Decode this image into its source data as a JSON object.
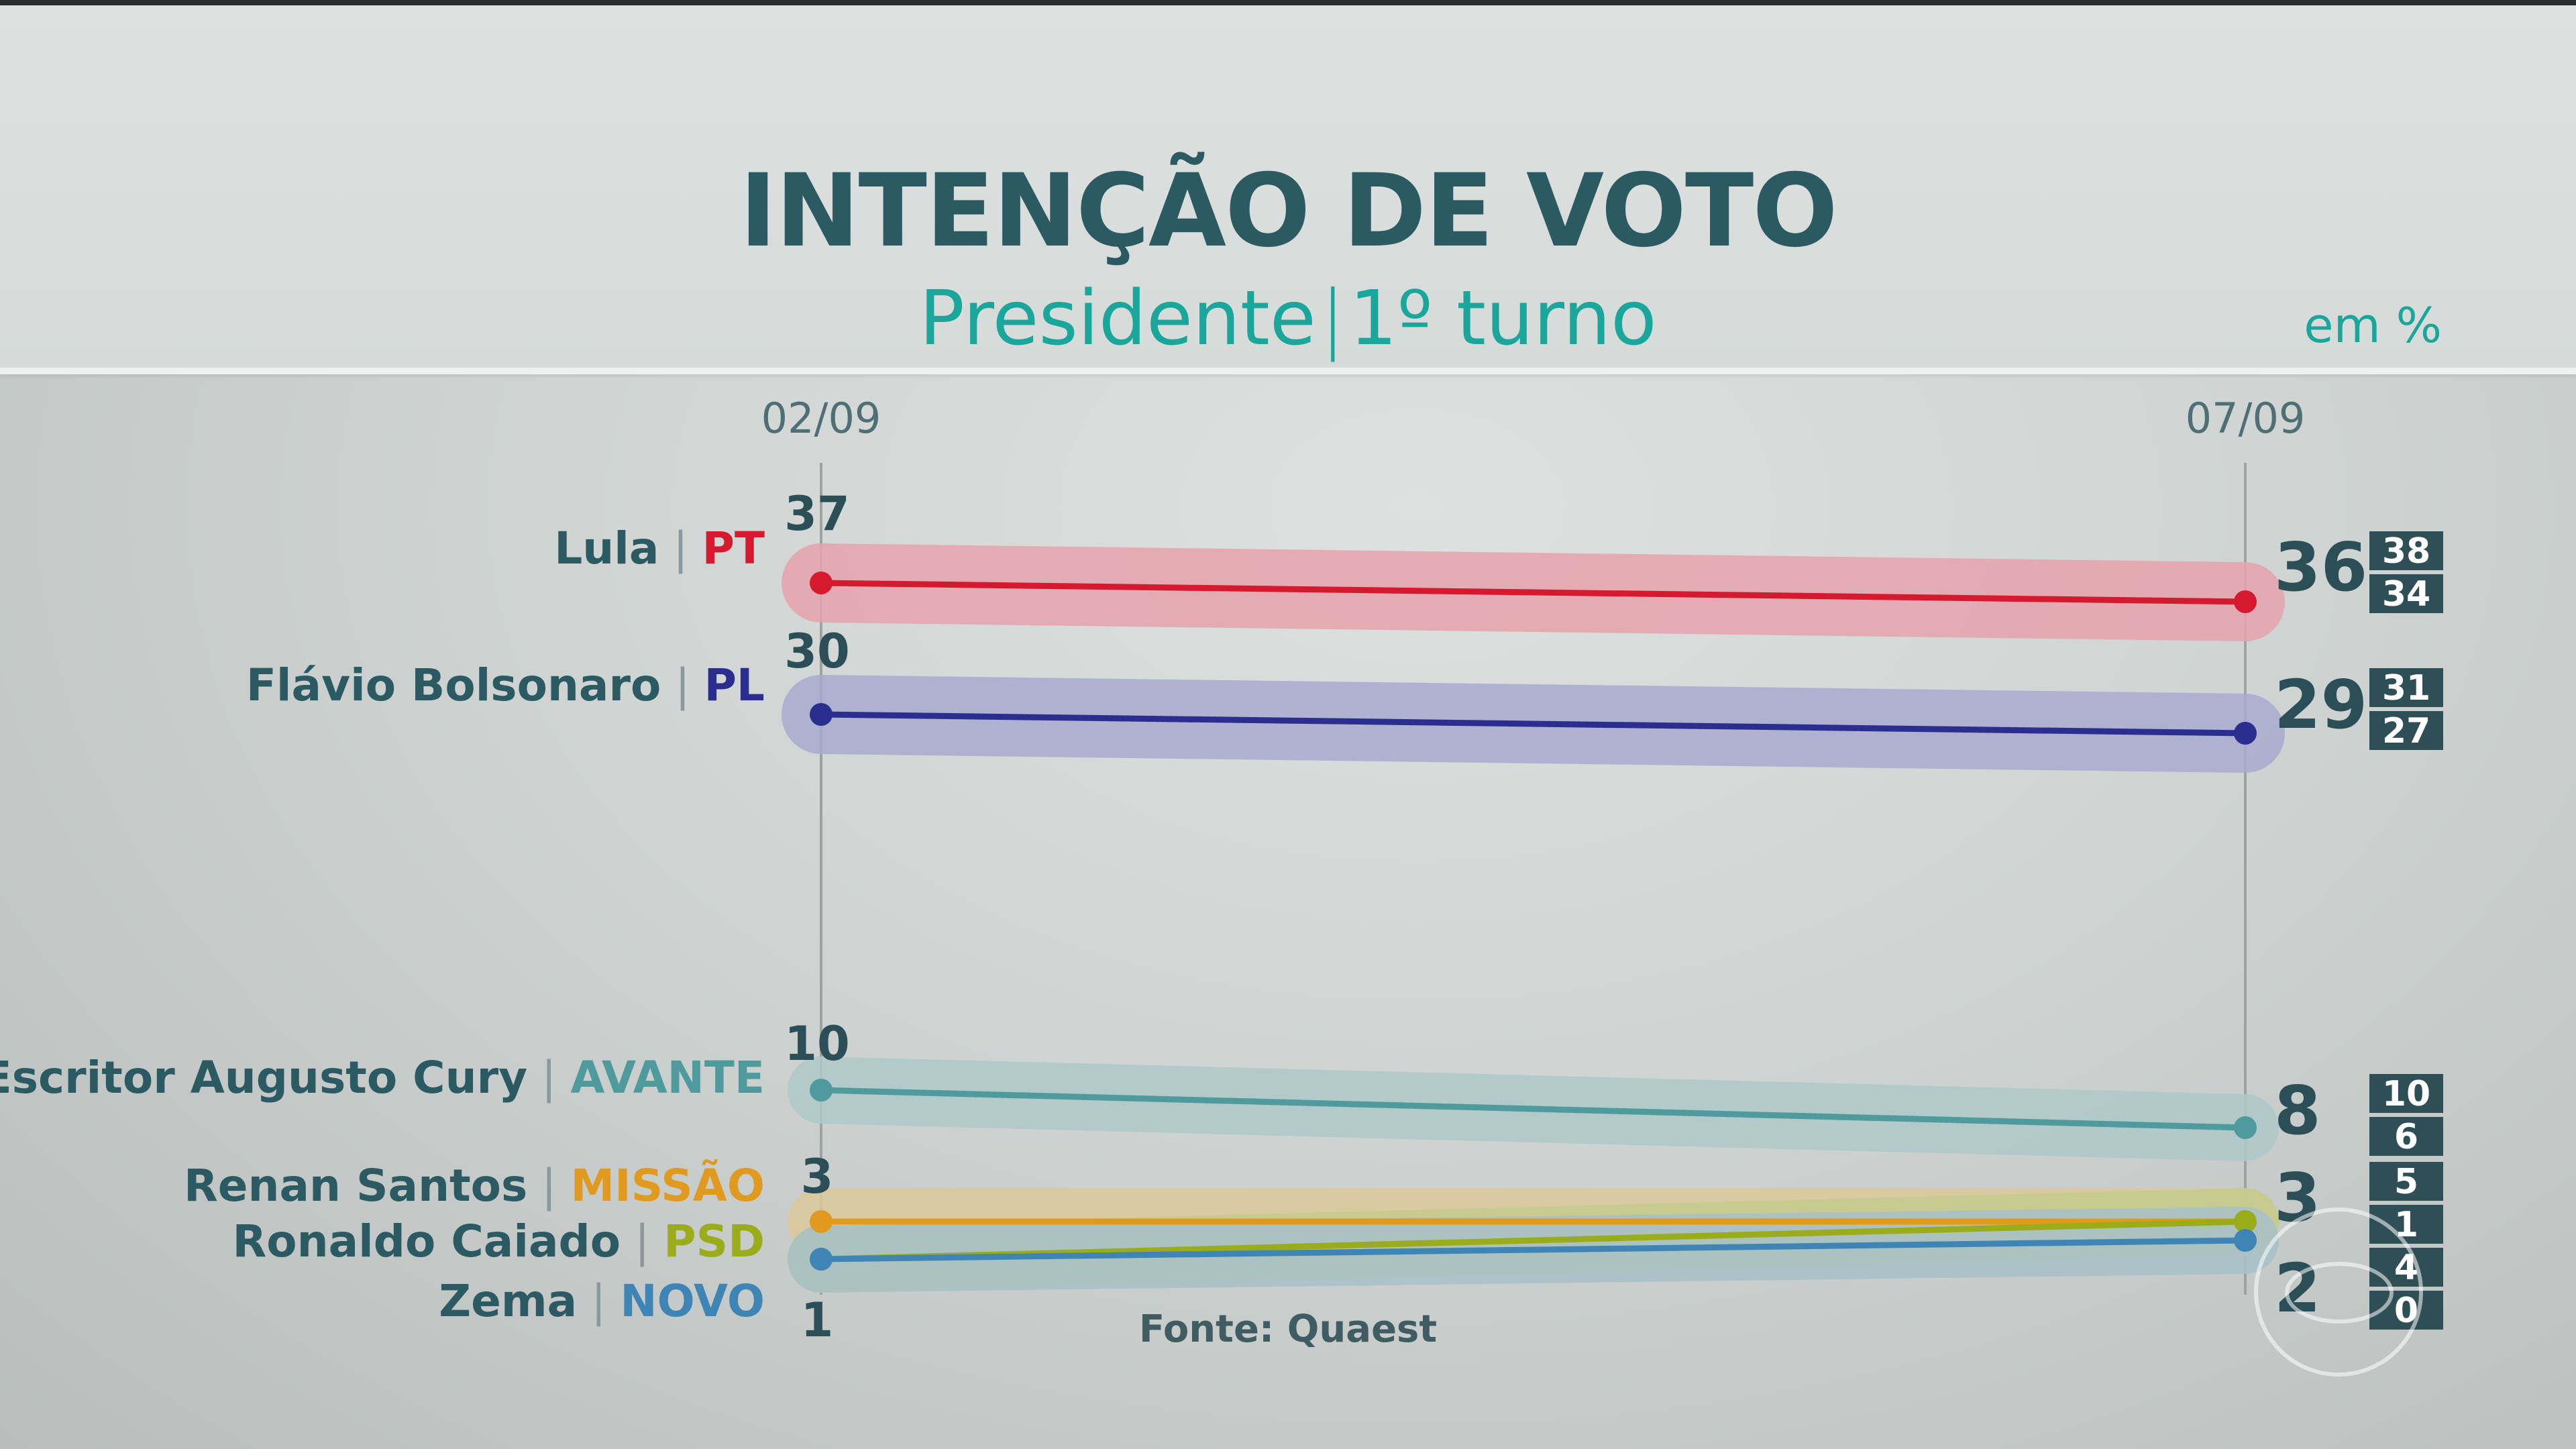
{
  "chart_data": {
    "type": "line",
    "title": "INTENÇÃO DE VOTO",
    "subtitle_left": "Presidente",
    "subtitle_separator": "|",
    "subtitle_right": "1º turno",
    "unit": "em %",
    "source": "Fonte: Quaest",
    "x": [
      "02/09",
      "07/09"
    ],
    "ylim": [
      0,
      40
    ],
    "series": [
      {
        "candidate": "Lula",
        "party": "PT",
        "values": [
          37,
          36
        ],
        "start_label": "37",
        "end_label": "36",
        "range": [
          "38",
          "34"
        ],
        "color": "#d5192e",
        "band": "#e6a3ad",
        "party_color": "#d5192e"
      },
      {
        "candidate": "Flávio Bolsonaro",
        "party": "PL",
        "values": [
          30,
          29
        ],
        "start_label": "30",
        "end_label": "29",
        "range": [
          "31",
          "27"
        ],
        "color": "#2b2d8f",
        "band": "#a9abd0",
        "party_color": "#2b2d8f"
      },
      {
        "candidate": "Escritor Augusto Cury",
        "party": "AVANTE",
        "values": [
          10,
          8
        ],
        "start_label": "10",
        "end_label": "8",
        "range": [
          "10",
          "6"
        ],
        "color": "#4e9a9c",
        "band": "#aec9c9",
        "party_color": "#4e9a9c"
      },
      {
        "candidate": "Renan Santos",
        "party": "MISSÃO",
        "values": [
          3,
          3
        ],
        "start_label": "3",
        "end_label": "3",
        "range": [
          "5",
          "1"
        ],
        "color": "#e09a1f",
        "band": "#dcc99b",
        "party_color": "#e09a1f"
      },
      {
        "candidate": "Ronaldo Caiado",
        "party": "PSD",
        "values": [
          1,
          3
        ],
        "start_label": "",
        "end_label": "",
        "range": [],
        "color": "#9aac1a",
        "band": "#c5cc8e",
        "party_color": "#9aac1a"
      },
      {
        "candidate": "Zema",
        "party": "NOVO",
        "values": [
          1,
          2
        ],
        "start_label": "1",
        "end_label": "2",
        "range": [
          "4",
          "0"
        ],
        "color": "#3e85b5",
        "band": "#a7c1c9",
        "party_color": "#3e85b5"
      }
    ],
    "colors": {
      "title": "#2c5a63",
      "subtitle": "#1aa69b",
      "candidate_text": "#2c5a63",
      "value_text": "#2c4e56",
      "range_box": "#2f4f57",
      "axis_line": "#9ea3a2"
    }
  }
}
